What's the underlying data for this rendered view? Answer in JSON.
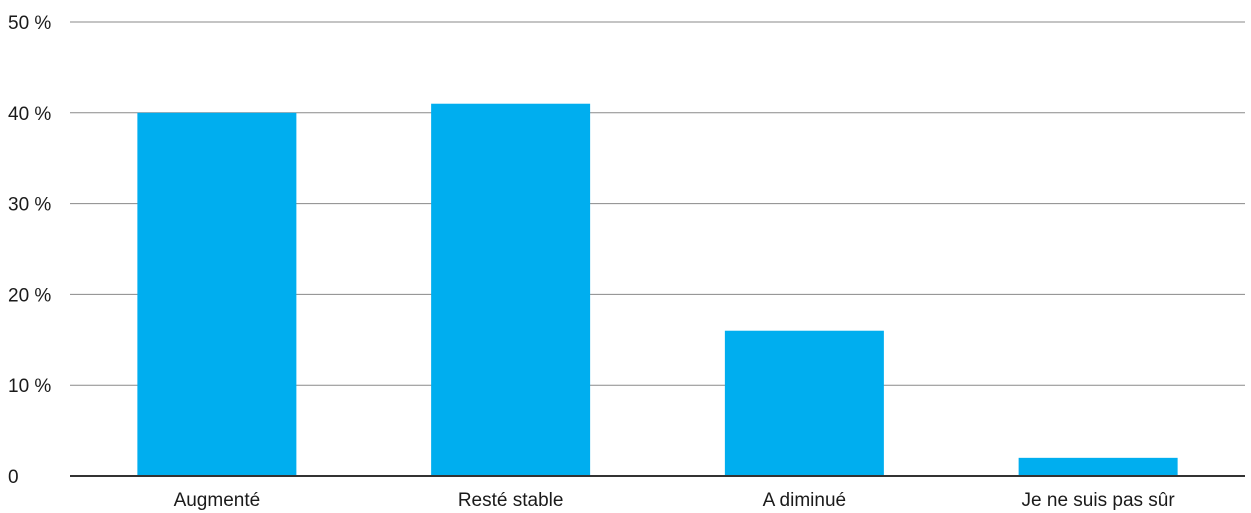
{
  "chart_data": {
    "type": "bar",
    "categories": [
      "Augmenté",
      "Resté stable",
      "A diminué",
      "Je ne suis pas sûr"
    ],
    "values": [
      40,
      41,
      16,
      2
    ],
    "y_ticks": [
      0,
      10,
      20,
      30,
      40,
      50
    ],
    "y_tick_labels": [
      "0",
      "10 %",
      "20 %",
      "30 %",
      "40 %",
      "50 %"
    ],
    "ylim": [
      0,
      50
    ],
    "grid": true,
    "legend": "none",
    "bar_color": "#00AEEF",
    "grid_color": "#8a8a8a",
    "axis_color": "#333333"
  }
}
